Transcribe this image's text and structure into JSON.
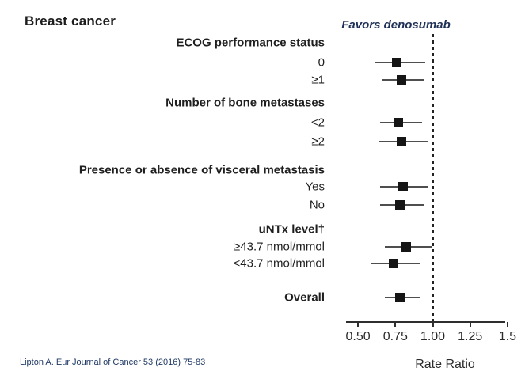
{
  "slide": {
    "title": "Breast cancer",
    "favors_label": "Favors denosumab",
    "citation": "Lipton A. Eur Journal of Cancer 53 (2016) 75-83"
  },
  "chart_data": {
    "type": "forest",
    "title": "Breast cancer",
    "xlabel": "Rate Ratio",
    "annotation": "Favors denosumab",
    "reference_line": 1.0,
    "x_ticks": [
      "0.50",
      "0.75",
      "1.00",
      "1.25",
      "1.5"
    ],
    "x_tick_values": [
      0.5,
      0.75,
      1.0,
      1.25,
      1.5
    ],
    "x_range_shown": [
      0.42,
      1.48
    ],
    "grid": false,
    "rows": [
      {
        "label": "ECOG performance status",
        "bold": true,
        "rr": null,
        "ci": null
      },
      {
        "label": "0",
        "bold": false,
        "rr": 0.76,
        "ci": [
          0.61,
          0.95
        ]
      },
      {
        "label": "≥1",
        "bold": false,
        "rr": 0.79,
        "ci": [
          0.66,
          0.94
        ]
      },
      {
        "label": "Number of bone metastases",
        "bold": true,
        "rr": null,
        "ci": null
      },
      {
        "label": "<2",
        "bold": false,
        "rr": 0.77,
        "ci": [
          0.65,
          0.93
        ]
      },
      {
        "label": "≥2",
        "bold": false,
        "rr": 0.79,
        "ci": [
          0.64,
          0.97
        ]
      },
      {
        "label": "Presence or absence of visceral metastasis",
        "bold": true,
        "rr": null,
        "ci": null
      },
      {
        "label": "Yes",
        "bold": false,
        "rr": 0.8,
        "ci": [
          0.65,
          0.97
        ]
      },
      {
        "label": "No",
        "bold": false,
        "rr": 0.78,
        "ci": [
          0.65,
          0.94
        ]
      },
      {
        "label": "uNTx level†",
        "bold": true,
        "rr": null,
        "ci": null
      },
      {
        "label": "≥43.7 nmol/mmol",
        "bold": false,
        "rr": 0.82,
        "ci": [
          0.68,
          1.0
        ]
      },
      {
        "label": "<43.7 nmol/mmol",
        "bold": false,
        "rr": 0.74,
        "ci": [
          0.59,
          0.92
        ]
      },
      {
        "label": "Overall",
        "bold": true,
        "rr": 0.78,
        "ci": [
          0.68,
          0.92
        ]
      }
    ],
    "colors": {
      "marker": "#151515",
      "ci_line": "#4f4f4f",
      "axis": "#2e2e2e",
      "annotation_text": "#1f3057",
      "citation_text": "#1f3864"
    }
  }
}
